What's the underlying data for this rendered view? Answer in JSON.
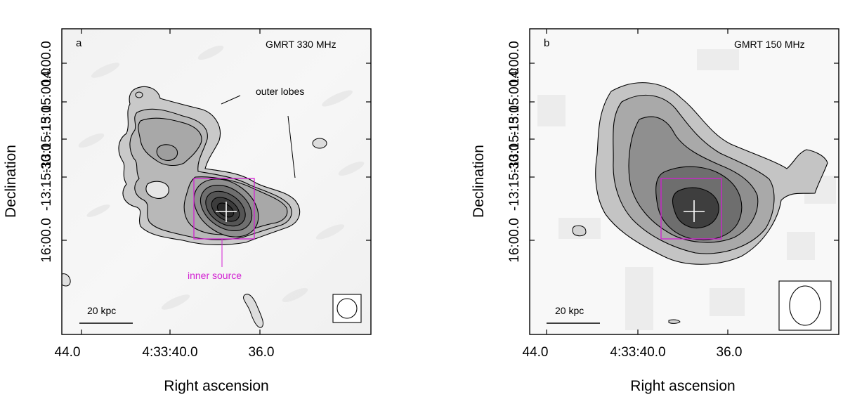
{
  "panels": [
    {
      "letter": "a",
      "instrument_label": "GMRT 330 MHz",
      "x_ticks": [
        "44.0",
        "4:33:40.0",
        "36.0"
      ],
      "y_ticks": [
        "14:00.0",
        "-13:15:00.0",
        "-13:15:15.0",
        "-13:15:30.0",
        "16:00.0"
      ],
      "xlabel": "Right ascension",
      "ylabel": "Declination",
      "scale_bar": "20 kpc",
      "annotation_outer": "outer lobes",
      "annotation_inner": "inner source",
      "box_color": "#d21fd2"
    },
    {
      "letter": "b",
      "instrument_label": "GMRT 150 MHz",
      "x_ticks": [
        "44.0",
        "4:33:40.0",
        "36.0"
      ],
      "y_ticks": [
        "14:00.0",
        "-13:15:00.0",
        "-13:15:15.0",
        "-13:15:30.0",
        "16:00.0"
      ],
      "xlabel": "Right ascension",
      "ylabel": "Declination",
      "scale_bar": "20 kpc",
      "box_color": "#d21fd2"
    }
  ]
}
